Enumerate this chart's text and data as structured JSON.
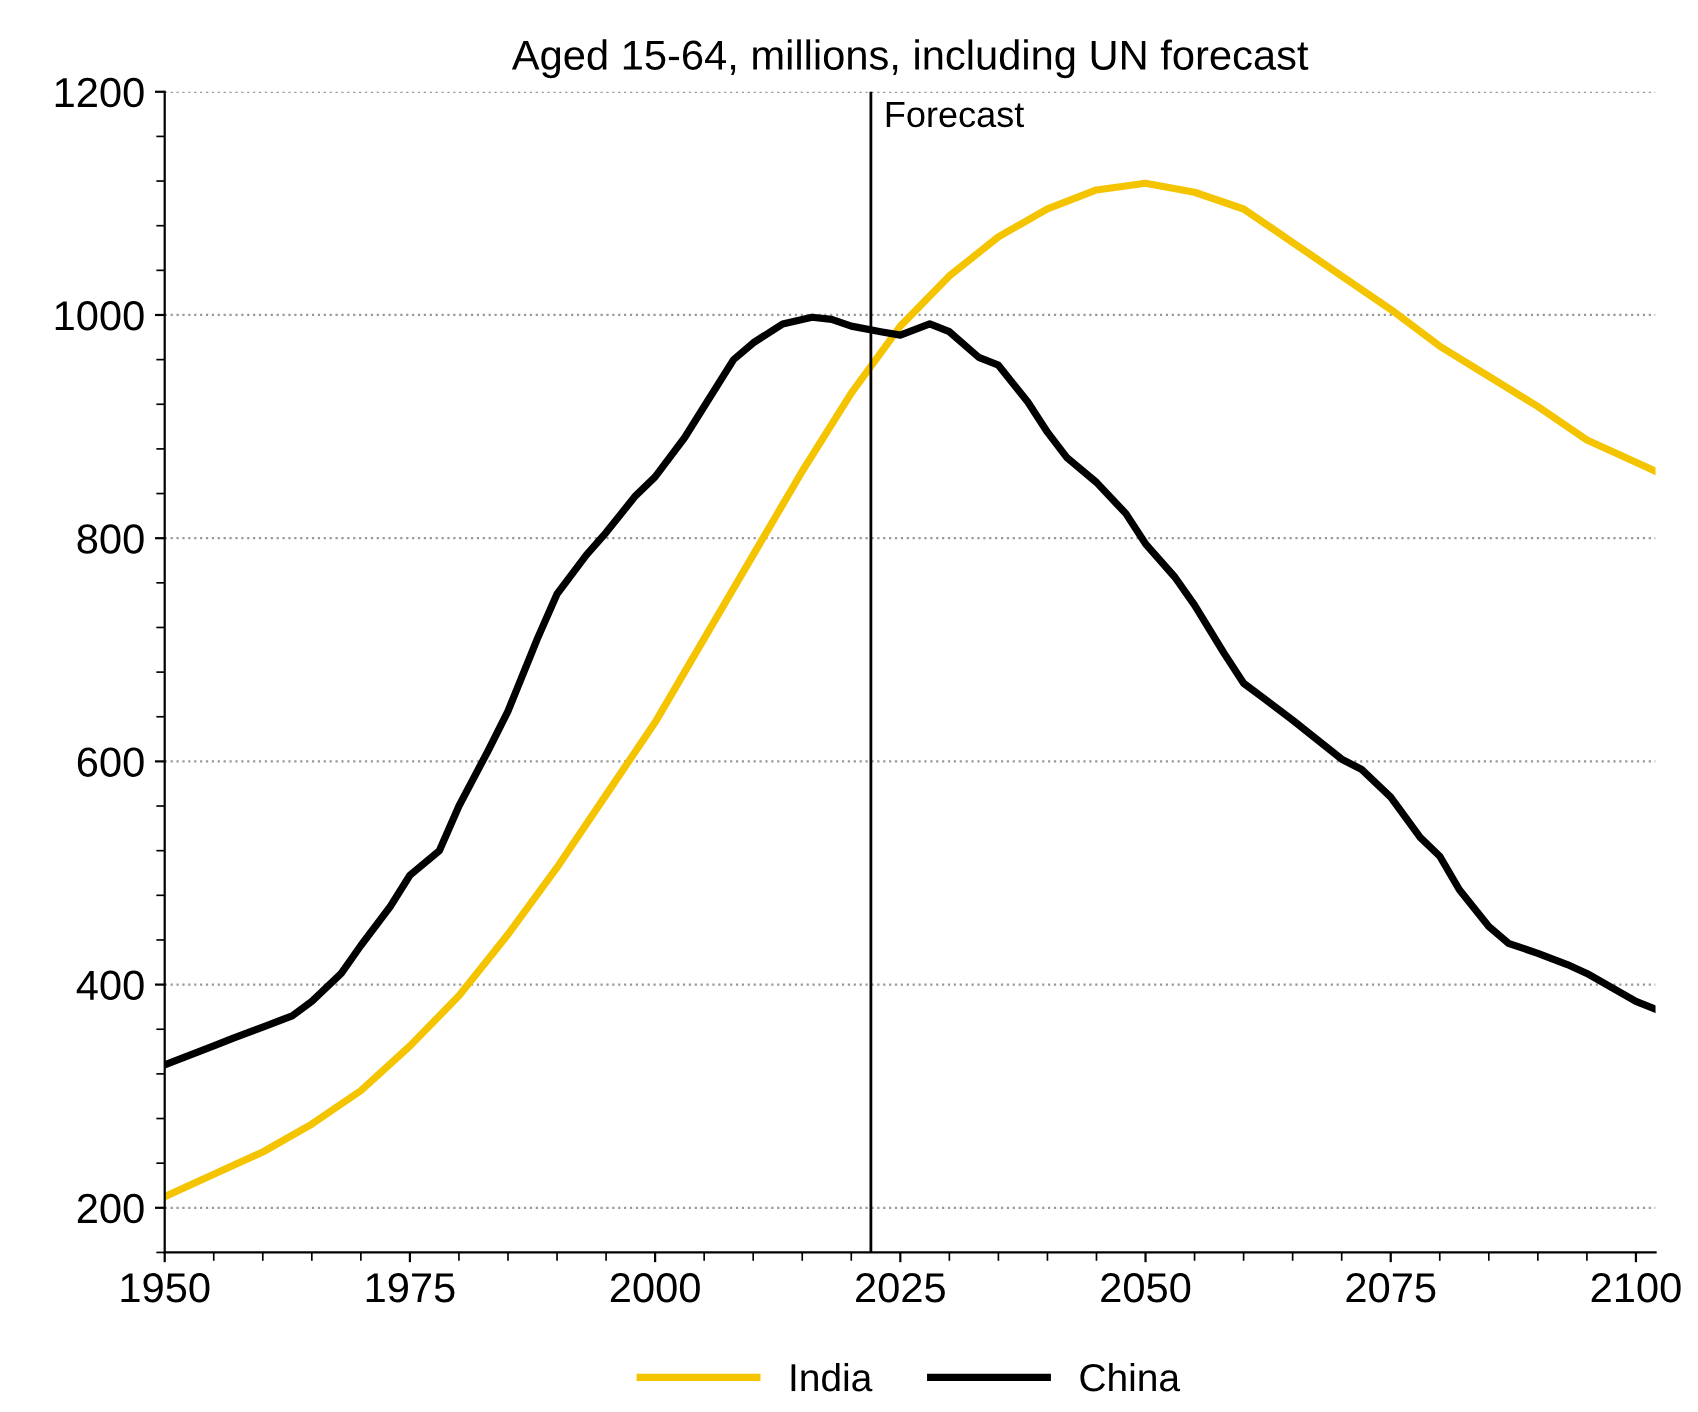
{
  "chart_data": {
    "type": "line",
    "title": "Aged 15-64, millions, including UN forecast",
    "xlim": [
      1950,
      2102
    ],
    "xticks": [
      1950,
      1975,
      2000,
      2025,
      2050,
      2075,
      2100
    ],
    "ylim": [
      160,
      1200
    ],
    "yticks": [
      200,
      400,
      600,
      800,
      1000,
      1200
    ],
    "grid": "y",
    "legend": "bottom",
    "line_style": "solid",
    "marker": "none",
    "ref_lines": [
      {
        "axis": "x",
        "value": 2022,
        "label": "Forecast",
        "color": "#000000",
        "line_style": "solid"
      }
    ],
    "series": [
      {
        "name": "India",
        "color": "#f5c400",
        "x": [
          1950,
          1955,
          1960,
          1965,
          1970,
          1975,
          1980,
          1985,
          1990,
          1995,
          2000,
          2005,
          2010,
          2015,
          2020,
          2025,
          2030,
          2035,
          2040,
          2045,
          2050,
          2055,
          2060,
          2065,
          2070,
          2075,
          2080,
          2085,
          2090,
          2095,
          2100,
          2102
        ],
        "values": [
          210,
          230,
          250,
          275,
          305,
          345,
          390,
          445,
          505,
          570,
          635,
          710,
          785,
          860,
          930,
          990,
          1035,
          1070,
          1095,
          1112,
          1118,
          1110,
          1095,
          1065,
          1035,
          1005,
          972,
          945,
          918,
          888,
          868,
          860
        ]
      },
      {
        "name": "China",
        "color": "#000000",
        "x": [
          1950,
          1955,
          1957,
          1960,
          1963,
          1965,
          1968,
          1970,
          1973,
          1975,
          1978,
          1980,
          1983,
          1985,
          1988,
          1990,
          1993,
          1995,
          1998,
          2000,
          2003,
          2005,
          2008,
          2010,
          2013,
          2016,
          2018,
          2020,
          2023,
          2025,
          2028,
          2030,
          2033,
          2035,
          2038,
          2040,
          2042,
          2045,
          2048,
          2050,
          2053,
          2055,
          2058,
          2060,
          2062,
          2065,
          2070,
          2072,
          2075,
          2078,
          2080,
          2082,
          2085,
          2087,
          2090,
          2093,
          2095,
          2100,
          2102
        ],
        "values": [
          328,
          345,
          352,
          362,
          372,
          385,
          410,
          435,
          470,
          498,
          520,
          560,
          610,
          645,
          710,
          750,
          785,
          805,
          838,
          855,
          890,
          918,
          960,
          975,
          992,
          998,
          996,
          990,
          985,
          982,
          992,
          985,
          962,
          955,
          922,
          895,
          872,
          850,
          822,
          795,
          765,
          740,
          697,
          670,
          657,
          637,
          602,
          593,
          568,
          532,
          515,
          485,
          452,
          437,
          428,
          418,
          410,
          385,
          378
        ]
      }
    ]
  }
}
